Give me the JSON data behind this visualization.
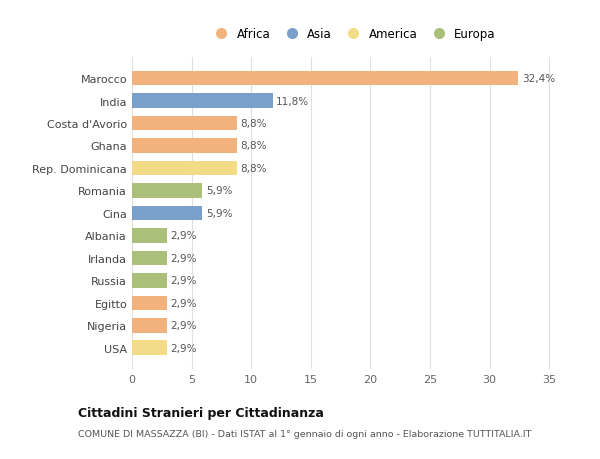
{
  "countries": [
    "Marocco",
    "India",
    "Costa d'Avorio",
    "Ghana",
    "Rep. Dominicana",
    "Romania",
    "Cina",
    "Albania",
    "Irlanda",
    "Russia",
    "Egitto",
    "Nigeria",
    "USA"
  ],
  "values": [
    32.4,
    11.8,
    8.8,
    8.8,
    8.8,
    5.9,
    5.9,
    2.9,
    2.9,
    2.9,
    2.9,
    2.9,
    2.9
  ],
  "labels": [
    "32,4%",
    "11,8%",
    "8,8%",
    "8,8%",
    "8,8%",
    "5,9%",
    "5,9%",
    "2,9%",
    "2,9%",
    "2,9%",
    "2,9%",
    "2,9%",
    "2,9%"
  ],
  "continents": [
    "Africa",
    "Asia",
    "Africa",
    "Africa",
    "America",
    "Europa",
    "Asia",
    "Europa",
    "Europa",
    "Europa",
    "Africa",
    "Africa",
    "America"
  ],
  "colors": {
    "Africa": "#F2B27E",
    "Asia": "#7B9FCB",
    "America": "#F2DC88",
    "Europa": "#AAC07A"
  },
  "legend_order": [
    "Africa",
    "Asia",
    "America",
    "Europa"
  ],
  "title": "Cittadini Stranieri per Cittadinanza",
  "subtitle": "COMUNE DI MASSAZZA (BI) - Dati ISTAT al 1° gennaio di ogni anno - Elaborazione TUTTITALIA.IT",
  "xlim": [
    0,
    37
  ],
  "xticks": [
    0,
    5,
    10,
    15,
    20,
    25,
    30,
    35
  ],
  "bg_color": "#ffffff",
  "grid_color": "#e0e0e0",
  "bar_height": 0.65
}
